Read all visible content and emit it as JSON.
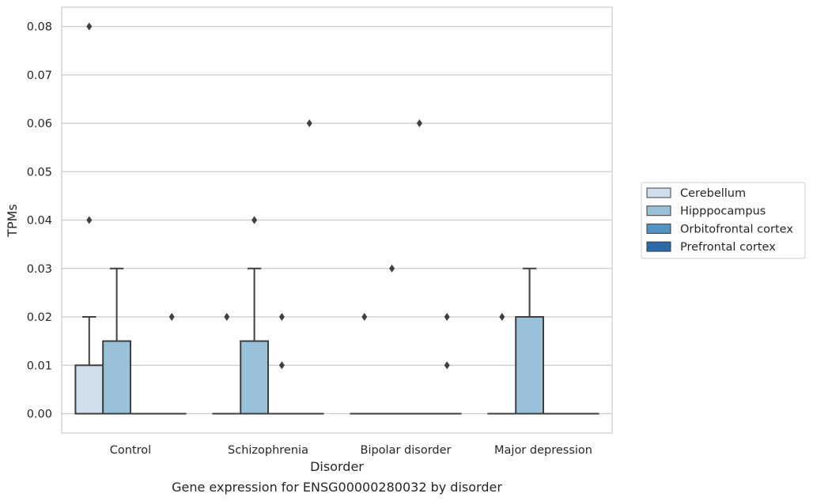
{
  "chart_data": {
    "type": "box",
    "title": "",
    "caption": "Gene expression for ENSG00000280032 by disorder",
    "xlabel": "Disorder",
    "ylabel": "TPMs",
    "ylim": [
      -0.004,
      0.084
    ],
    "yticks": [
      "0.00",
      "0.01",
      "0.02",
      "0.03",
      "0.04",
      "0.05",
      "0.06",
      "0.07",
      "0.08"
    ],
    "grid": "horizontal",
    "legend_position": "right",
    "categories": [
      "Control",
      "Schizophrenia",
      "Bipolar disorder",
      "Major depression"
    ],
    "series": [
      {
        "name": "Cerebellum",
        "color": "#d1dfec",
        "boxes": [
          {
            "q1": 0.0,
            "median": 0.0,
            "q3": 0.01,
            "whislo": 0.0,
            "whishi": 0.02,
            "fliers": [
              0.08,
              0.04
            ]
          },
          {
            "q1": 0.0,
            "median": 0.0,
            "q3": 0.0,
            "whislo": 0.0,
            "whishi": 0.0,
            "fliers": [
              0.02
            ]
          },
          {
            "q1": 0.0,
            "median": 0.0,
            "q3": 0.0,
            "whislo": 0.0,
            "whishi": 0.0,
            "fliers": [
              0.02
            ]
          },
          {
            "q1": 0.0,
            "median": 0.0,
            "q3": 0.0,
            "whislo": 0.0,
            "whishi": 0.0,
            "fliers": [
              0.02
            ]
          }
        ]
      },
      {
        "name": "Hipppocampus",
        "color": "#9ac1da",
        "boxes": [
          {
            "q1": 0.0,
            "median": 0.0,
            "q3": 0.015,
            "whislo": 0.0,
            "whishi": 0.03,
            "fliers": []
          },
          {
            "q1": 0.0,
            "median": 0.0,
            "q3": 0.015,
            "whislo": 0.0,
            "whishi": 0.03,
            "fliers": [
              0.04
            ]
          },
          {
            "q1": 0.0,
            "median": 0.0,
            "q3": 0.0,
            "whislo": 0.0,
            "whishi": 0.0,
            "fliers": [
              0.03
            ]
          },
          {
            "q1": 0.0,
            "median": 0.0,
            "q3": 0.02,
            "whislo": 0.0,
            "whishi": 0.03,
            "fliers": []
          }
        ]
      },
      {
        "name": "Orbitofrontal cortex",
        "color": "#5593c2",
        "boxes": [
          {
            "q1": 0.0,
            "median": 0.0,
            "q3": 0.0,
            "whislo": 0.0,
            "whishi": 0.0,
            "fliers": []
          },
          {
            "q1": 0.0,
            "median": 0.0,
            "q3": 0.0,
            "whislo": 0.0,
            "whishi": 0.0,
            "fliers": [
              0.02,
              0.01
            ]
          },
          {
            "q1": 0.0,
            "median": 0.0,
            "q3": 0.0,
            "whislo": 0.0,
            "whishi": 0.0,
            "fliers": [
              0.06
            ]
          },
          {
            "q1": 0.0,
            "median": 0.0,
            "q3": 0.0,
            "whislo": 0.0,
            "whishi": 0.0,
            "fliers": []
          }
        ]
      },
      {
        "name": "Prefrontal cortex",
        "color": "#2a6aa8",
        "boxes": [
          {
            "q1": 0.0,
            "median": 0.0,
            "q3": 0.0,
            "whislo": 0.0,
            "whishi": 0.0,
            "fliers": [
              0.02
            ]
          },
          {
            "q1": 0.0,
            "median": 0.0,
            "q3": 0.0,
            "whislo": 0.0,
            "whishi": 0.0,
            "fliers": [
              0.06
            ]
          },
          {
            "q1": 0.0,
            "median": 0.0,
            "q3": 0.0,
            "whislo": 0.0,
            "whishi": 0.0,
            "fliers": [
              0.02,
              0.01
            ]
          },
          {
            "q1": 0.0,
            "median": 0.0,
            "q3": 0.0,
            "whislo": 0.0,
            "whishi": 0.0,
            "fliers": []
          }
        ]
      }
    ]
  }
}
